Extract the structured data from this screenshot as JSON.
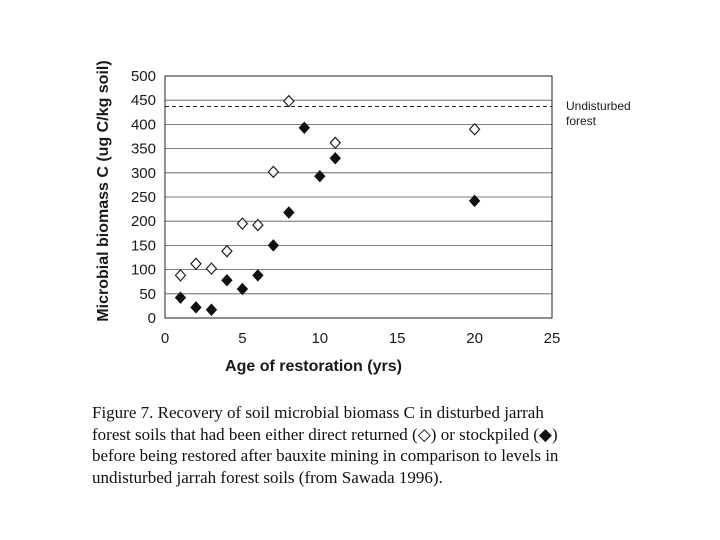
{
  "chart_data": {
    "type": "scatter",
    "xlabel": "Age of restoration (yrs)",
    "ylabel": "Microbial biomass C (ug C/kg soil)",
    "xlim": [
      0,
      25
    ],
    "ylim": [
      0,
      500
    ],
    "x_ticks": [
      0,
      5,
      10,
      15,
      20,
      25
    ],
    "y_ticks": [
      0,
      50,
      100,
      150,
      200,
      250,
      300,
      350,
      400,
      450,
      500
    ],
    "grid": "horizontal",
    "series": [
      {
        "marker": "open-diamond",
        "color": "#222222",
        "points": [
          [
            1,
            88
          ],
          [
            2,
            112
          ],
          [
            3,
            102
          ],
          [
            4,
            138
          ],
          [
            5,
            195
          ],
          [
            6,
            192
          ],
          [
            7,
            302
          ],
          [
            8,
            448
          ],
          [
            11,
            362
          ],
          [
            20,
            390
          ]
        ]
      },
      {
        "marker": "filled-diamond",
        "color": "#111111",
        "points": [
          [
            1,
            42
          ],
          [
            2,
            22
          ],
          [
            3,
            17
          ],
          [
            4,
            78
          ],
          [
            5,
            60
          ],
          [
            6,
            88
          ],
          [
            7,
            150
          ],
          [
            8,
            218
          ],
          [
            9,
            393
          ],
          [
            10,
            293
          ],
          [
            11,
            330
          ],
          [
            20,
            242
          ]
        ]
      }
    ],
    "reference_line": {
      "value": 437,
      "label_lines": [
        "Undisturbed",
        "forest"
      ]
    }
  },
  "caption": {
    "lines": [
      "Figure 7.  Recovery of soil microbial biomass C in disturbed jarrah",
      "forest soils that had been either direct returned (◇) or stockpiled (◆)",
      "before being restored after bauxite mining in comparison to levels in",
      "undisturbed jarrah forest soils (from Sawada 1996)."
    ]
  }
}
